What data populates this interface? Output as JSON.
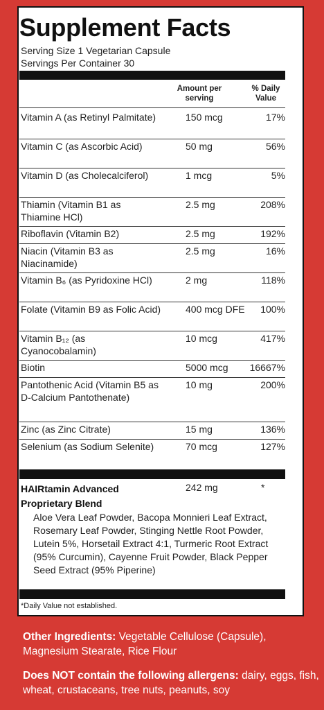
{
  "title": "Supplement Facts",
  "serving_size": "Serving Size 1 Vegetarian Capsule",
  "servings_per_container": "Servings Per Container 30",
  "header": {
    "amount": "Amount per serving",
    "daily_value": "% Daily Value"
  },
  "nutrients": [
    {
      "name": "Vitamin A (as Retinyl Palmitate)",
      "amount": "150 mcg",
      "dv": "17%"
    },
    {
      "name": "Vitamin C (as Ascorbic Acid)",
      "amount": "50 mg",
      "dv": "56%"
    },
    {
      "name": "Vitamin D (as Cholecalciferol)",
      "amount": "1 mcg",
      "dv": "5%"
    },
    {
      "name": "Thiamin (Vitamin B1 as Thiamine HCl)",
      "amount": "2.5 mg",
      "dv": "208%"
    },
    {
      "name": "Riboflavin (Vitamin B2)",
      "amount": "2.5 mg",
      "dv": "192%"
    },
    {
      "name": "Niacin (Vitamin B3 as Niacinamide)",
      "amount": "2.5 mg",
      "dv": "16%"
    },
    {
      "name": "Vitamin B₆ (as Pyridoxine HCl)",
      "amount": "2 mg",
      "dv": "118%"
    },
    {
      "name": "Folate (Vitamin B9 as Folic Acid)",
      "amount": "400 mcg DFE",
      "dv": "100%"
    },
    {
      "name": "Vitamin B₁₂ (as Cyanocobalamin)",
      "amount": "10 mcg",
      "dv": "417%"
    },
    {
      "name": "Biotin",
      "amount": "5000 mcg",
      "dv": "16667%"
    },
    {
      "name": "Pantothenic Acid (Vitamin B5 as D-Calcium Pantothenate)",
      "amount": "10 mg",
      "dv": "200%"
    },
    {
      "name": "Zinc (as Zinc Citrate)",
      "amount": "15 mg",
      "dv": "136%"
    },
    {
      "name": "Selenium (as Sodium Selenite)",
      "amount": "70 mcg",
      "dv": "127%"
    }
  ],
  "blend": {
    "name": "HAIRtamin Advanced Proprietary Blend",
    "amount": "242 mg",
    "dv": "*",
    "ingredients": "Aloe Vera Leaf Powder, Bacopa Monnieri Leaf Extract, Rosemary Leaf Powder, Stinging Nettle Root Powder, Lutein 5%, Horsetail Extract 4:1, Turmeric Root Extract (95% Curcumin), Cayenne Fruit Powder, Black Pepper Seed Extract (95% Piperine)"
  },
  "footnote": "*Daily Value not established.",
  "other_ingredients": {
    "label": "Other Ingredients:",
    "text": "Vegetable Cellulose (Capsule), Magnesium Stearate, Rice Flour"
  },
  "allergens": {
    "label": "Does NOT contain the following allergens:",
    "text": "dairy, eggs, fish, wheat, crustaceans, tree nuts, peanuts, soy"
  },
  "colors": {
    "background": "#d63a34",
    "panel": "#ffffff",
    "rule": "#111111"
  }
}
